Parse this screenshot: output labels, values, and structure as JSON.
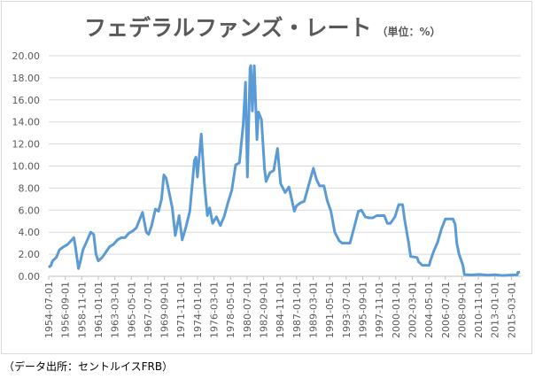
{
  "chart_data": {
    "type": "line",
    "title": "フェデラルファンズ・レート",
    "subtitle": "（単位：%）",
    "source": "（データ出所：セントルイスFRB）",
    "color": "#5b9bd5",
    "grid": true,
    "x": [
      1954.5,
      1954.8,
      1955.0,
      1955.5,
      1955.9,
      1956.5,
      1957.0,
      1957.8,
      1958.0,
      1958.4,
      1958.6,
      1959.0,
      1959.5,
      1960.0,
      1960.4,
      1960.7,
      1961.0,
      1961.5,
      1962.0,
      1962.5,
      1963.0,
      1963.5,
      1964.0,
      1964.5,
      1965.0,
      1965.5,
      1966.0,
      1966.8,
      1967.3,
      1967.6,
      1968.0,
      1968.5,
      1968.9,
      1969.3,
      1969.6,
      1969.9,
      1970.3,
      1970.7,
      1971.1,
      1971.6,
      1972.0,
      1972.5,
      1973.0,
      1973.6,
      1973.8,
      1974.0,
      1974.5,
      1974.9,
      1975.3,
      1975.6,
      1976.0,
      1976.5,
      1977.0,
      1977.5,
      1978.0,
      1978.5,
      1979.0,
      1979.5,
      1980.0,
      1980.3,
      1980.55,
      1980.9,
      1981.0,
      1981.2,
      1981.45,
      1981.8,
      1982.0,
      1982.4,
      1982.8,
      1983.0,
      1983.5,
      1984.0,
      1984.5,
      1984.9,
      1985.5,
      1986.0,
      1986.7,
      1987.0,
      1987.6,
      1988.0,
      1988.6,
      1989.2,
      1989.6,
      1990.0,
      1990.6,
      1991.0,
      1991.5,
      1992.0,
      1992.6,
      1993.0,
      1993.6,
      1994.0,
      1994.5,
      1995.1,
      1995.5,
      1996.0,
      1996.5,
      1997.0,
      1997.5,
      1998.5,
      1998.9,
      1999.3,
      1999.9,
      2000.4,
      2000.9,
      2001.2,
      2001.7,
      2001.95,
      2002.8,
      2003.0,
      2003.5,
      2004.4,
      2004.5,
      2005.0,
      2005.5,
      2006.0,
      2006.5,
      2007.5,
      2007.8,
      2008.0,
      2008.3,
      2008.8,
      2009.0,
      2010.0,
      2011.0,
      2012.0,
      2013.0,
      2014.0,
      2015.0,
      2015.95,
      2016.0,
      2016.3
    ],
    "values": [
      0.8,
      1.0,
      1.4,
      1.7,
      2.4,
      2.7,
      2.9,
      3.5,
      2.7,
      0.7,
      1.2,
      2.4,
      3.2,
      4.0,
      3.8,
      2.0,
      1.4,
      1.7,
      2.2,
      2.7,
      2.9,
      3.3,
      3.5,
      3.5,
      3.9,
      4.1,
      4.4,
      5.8,
      4.0,
      3.8,
      4.6,
      6.1,
      5.9,
      7.0,
      9.2,
      8.9,
      7.6,
      6.2,
      3.7,
      5.5,
      3.3,
      4.5,
      5.9,
      10.5,
      10.8,
      9.0,
      12.9,
      8.5,
      5.5,
      6.2,
      4.8,
      5.4,
      4.6,
      5.4,
      6.7,
      7.8,
      10.1,
      10.3,
      13.8,
      17.6,
      9.0,
      18.9,
      19.1,
      15.0,
      19.1,
      12.4,
      14.9,
      14.2,
      9.7,
      8.6,
      9.4,
      9.6,
      11.6,
      8.4,
      7.6,
      8.1,
      5.9,
      6.4,
      6.7,
      6.8,
      8.3,
      9.8,
      8.8,
      8.2,
      8.2,
      6.9,
      5.9,
      4.0,
      3.2,
      3.0,
      3.0,
      3.0,
      4.3,
      5.9,
      6.0,
      5.4,
      5.3,
      5.3,
      5.5,
      5.5,
      4.8,
      4.8,
      5.4,
      6.5,
      6.5,
      5.0,
      3.0,
      1.8,
      1.7,
      1.3,
      1.0,
      1.0,
      1.3,
      2.3,
      3.1,
      4.3,
      5.2,
      5.2,
      4.7,
      3.0,
      2.0,
      1.0,
      0.15,
      0.12,
      0.17,
      0.1,
      0.14,
      0.07,
      0.11,
      0.13,
      0.36,
      0.37
    ],
    "xlim": [
      1954.5,
      2016.4
    ],
    "xticks": [
      {
        "value": 1954.5,
        "label": "1954-07-01"
      },
      {
        "value": 1956.667,
        "label": "1956-09-01"
      },
      {
        "value": 1958.833,
        "label": "1958-11-01"
      },
      {
        "value": 1961.0,
        "label": "1961-01-01"
      },
      {
        "value": 1963.167,
        "label": "1963-03-01"
      },
      {
        "value": 1965.333,
        "label": "1965-05-01"
      },
      {
        "value": 1967.5,
        "label": "1967-07-01"
      },
      {
        "value": 1969.667,
        "label": "1969-09-01"
      },
      {
        "value": 1971.833,
        "label": "1971-11-01"
      },
      {
        "value": 1974.0,
        "label": "1974-01-01"
      },
      {
        "value": 1976.167,
        "label": "1976-03-01"
      },
      {
        "value": 1978.333,
        "label": "1978-05-01"
      },
      {
        "value": 1980.5,
        "label": "1980-07-01"
      },
      {
        "value": 1982.667,
        "label": "1982-09-01"
      },
      {
        "value": 1984.833,
        "label": "1984-11-01"
      },
      {
        "value": 1987.0,
        "label": "1987-01-01"
      },
      {
        "value": 1989.167,
        "label": "1989-03-01"
      },
      {
        "value": 1991.333,
        "label": "1991-05-01"
      },
      {
        "value": 1993.5,
        "label": "1993-07-01"
      },
      {
        "value": 1995.667,
        "label": "1995-09-01"
      },
      {
        "value": 1997.833,
        "label": "1997-11-01"
      },
      {
        "value": 2000.0,
        "label": "2000-01-01"
      },
      {
        "value": 2002.167,
        "label": "2002-03-01"
      },
      {
        "value": 2004.333,
        "label": "2004-05-01"
      },
      {
        "value": 2006.5,
        "label": "2006-07-01"
      },
      {
        "value": 2008.667,
        "label": "2008-09-01"
      },
      {
        "value": 2010.833,
        "label": "2010-11-01"
      },
      {
        "value": 2013.0,
        "label": "2013-01-01"
      },
      {
        "value": 2015.167,
        "label": "2015-03-01"
      }
    ],
    "ylim": [
      0,
      20
    ],
    "yticks": [
      {
        "value": 0,
        "label": "0.00"
      },
      {
        "value": 2,
        "label": "2.00"
      },
      {
        "value": 4,
        "label": "4.00"
      },
      {
        "value": 6,
        "label": "6.00"
      },
      {
        "value": 8,
        "label": "8.00"
      },
      {
        "value": 10,
        "label": "10.00"
      },
      {
        "value": 12,
        "label": "12.00"
      },
      {
        "value": 14,
        "label": "14.00"
      },
      {
        "value": 16,
        "label": "16.00"
      },
      {
        "value": 18,
        "label": "18.00"
      },
      {
        "value": 20,
        "label": "20.00"
      }
    ]
  }
}
